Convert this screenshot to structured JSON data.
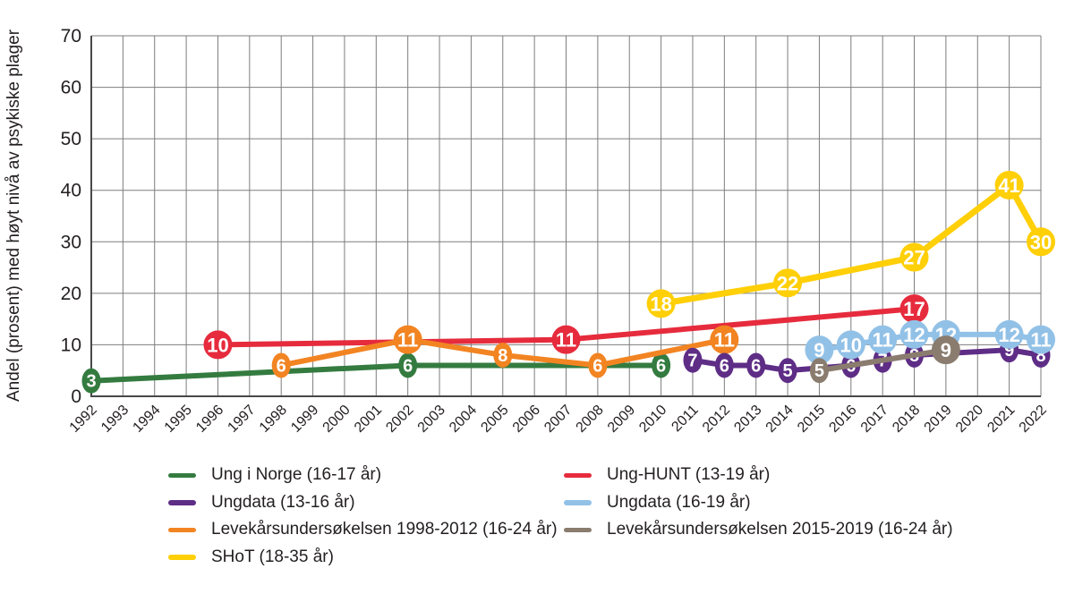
{
  "chart_data": {
    "type": "line",
    "title": "",
    "xlabel": "",
    "ylabel": "Andel (prosent) med høyt nivå av psykiske plager",
    "xlim": [
      1992,
      2022
    ],
    "ylim": [
      0,
      70
    ],
    "grid": true,
    "legend_position": "bottom",
    "x_ticks": [
      1992,
      1993,
      1994,
      1995,
      1996,
      1997,
      1998,
      1999,
      2000,
      2001,
      2002,
      2003,
      2004,
      2005,
      2006,
      2007,
      2008,
      2009,
      2010,
      2011,
      2012,
      2013,
      2014,
      2015,
      2016,
      2017,
      2018,
      2019,
      2020,
      2021,
      2022
    ],
    "y_ticks": [
      0,
      10,
      20,
      30,
      40,
      50,
      60,
      70
    ],
    "colors": {
      "grid": "#7d7d7d",
      "axis": "#47484a",
      "text": "#231f20",
      "background": "#ffffff",
      "point_label": "#ffffff"
    },
    "series": [
      {
        "name": "Ung i Norge (16-17 år)",
        "color": "#347b40",
        "line_width": 6,
        "points": [
          {
            "x": 1992,
            "v": 3,
            "s": "sm"
          },
          {
            "x": 2002,
            "v": 6,
            "s": "sm"
          },
          {
            "x": 2010,
            "v": 6,
            "s": "sm"
          }
        ]
      },
      {
        "name": "Ung-HUNT (13-19 år)",
        "color": "#e62b3d",
        "line_width": 6,
        "points": [
          {
            "x": 1996,
            "v": 10,
            "s": "lg"
          },
          {
            "x": 2007,
            "v": 11,
            "s": "lg"
          },
          {
            "x": 2018,
            "v": 17,
            "s": "lg"
          }
        ]
      },
      {
        "name": "Ungdata (13-16 år)",
        "color": "#5e2d86",
        "line_width": 6,
        "points": [
          {
            "x": 2011,
            "v": 7,
            "s": "sm"
          },
          {
            "x": 2012,
            "v": 6,
            "s": "sm"
          },
          {
            "x": 2013,
            "v": 6,
            "s": "sm"
          },
          {
            "x": 2014,
            "v": 5,
            "s": "sm"
          },
          {
            "x": 2016,
            "v": 6,
            "s": "sm"
          },
          {
            "x": 2017,
            "v": 7,
            "s": "sm"
          },
          {
            "x": 2018,
            "v": 8,
            "s": "sm"
          },
          {
            "x": 2021,
            "v": 9,
            "s": "sm"
          },
          {
            "x": 2022,
            "v": 8,
            "s": "sm"
          }
        ]
      },
      {
        "name": "Ungdata (16-19 år)",
        "color": "#92c1e7",
        "line_width": 6,
        "points": [
          {
            "x": 2015,
            "v": 9,
            "s": "lg"
          },
          {
            "x": 2016,
            "v": 10,
            "s": "lg"
          },
          {
            "x": 2017,
            "v": 11,
            "s": "lg"
          },
          {
            "x": 2018,
            "v": 12,
            "s": "lg"
          },
          {
            "x": 2019,
            "v": 12,
            "s": "lg"
          },
          {
            "x": 2021,
            "v": 12,
            "s": "lg"
          },
          {
            "x": 2022,
            "v": 11,
            "s": "lg"
          }
        ]
      },
      {
        "name": "Levekårsundersøkelsen 1998-2012 (16-24 år)",
        "color": "#f28422",
        "line_width": 6,
        "points": [
          {
            "x": 1998,
            "v": 6,
            "s": "sm"
          },
          {
            "x": 2002,
            "v": 11,
            "s": "lg"
          },
          {
            "x": 2005,
            "v": 8,
            "s": "sm"
          },
          {
            "x": 2008,
            "v": 6,
            "s": "sm"
          },
          {
            "x": 2012,
            "v": 11,
            "s": "lg"
          }
        ]
      },
      {
        "name": "Levekårsundersøkelsen 2015-2019 (16-24 år)",
        "color": "#8a7c6e",
        "line_width": 6,
        "points": [
          {
            "x": 2015,
            "v": 5,
            "s": "sm"
          },
          {
            "x": 2019,
            "v": 9,
            "s": "lg"
          }
        ]
      },
      {
        "name": "SHoT (18-35 år)",
        "color": "#ffcf07",
        "line_width": 7,
        "points": [
          {
            "x": 2010,
            "v": 18,
            "s": "lg"
          },
          {
            "x": 2014,
            "v": 22,
            "s": "lg"
          },
          {
            "x": 2018,
            "v": 27,
            "s": "lg"
          },
          {
            "x": 2021,
            "v": 41,
            "s": "lg"
          },
          {
            "x": 2022,
            "v": 30,
            "s": "lg"
          }
        ]
      }
    ]
  },
  "legend": {
    "columns": [
      [
        0,
        2,
        4,
        6
      ],
      [
        1,
        3,
        5
      ]
    ]
  }
}
